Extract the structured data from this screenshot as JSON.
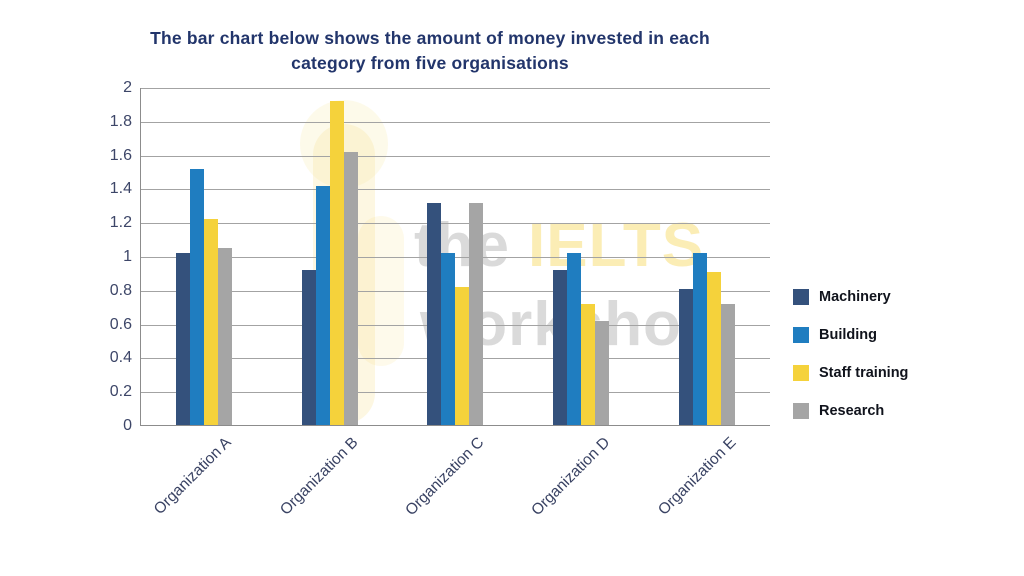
{
  "title": "The bar chart below shows the amount of money invested in each category from five organisations",
  "watermark": {
    "line1": "the",
    "accent": "IELTS",
    "line2": "workshop"
  },
  "chart_data": {
    "type": "bar",
    "categories": [
      "Organization A",
      "Organization B",
      "Organization C",
      "Organization D",
      "Organization E"
    ],
    "series": [
      {
        "name": "Machinery",
        "color": "#34517C",
        "values": [
          1.02,
          0.92,
          1.32,
          0.92,
          0.81
        ]
      },
      {
        "name": "Building",
        "color": "#1F7DC0",
        "values": [
          1.52,
          1.42,
          1.02,
          1.02,
          1.02
        ]
      },
      {
        "name": "Staff training",
        "color": "#F5D23B",
        "values": [
          1.22,
          1.92,
          0.82,
          0.72,
          0.91
        ]
      },
      {
        "name": "Research",
        "color": "#A5A5A5",
        "values": [
          1.05,
          1.62,
          1.32,
          0.62,
          0.72
        ]
      }
    ],
    "ylim": [
      0,
      2
    ],
    "y_ticks": [
      0,
      0.2,
      0.4,
      0.6,
      0.8,
      1,
      1.2,
      1.4,
      1.6,
      1.8,
      2
    ],
    "grid": true,
    "legend_position": "right"
  }
}
